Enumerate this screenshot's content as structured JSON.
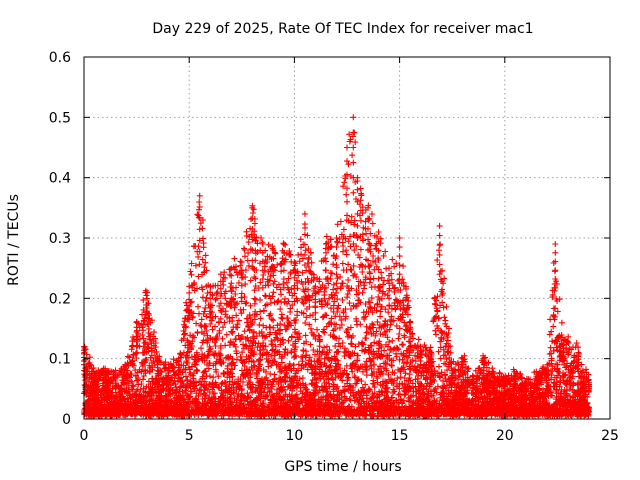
{
  "chart_data": {
    "type": "scatter",
    "title": "Day 229 of 2025, Rate Of TEC Index for receiver mac1",
    "xlabel": "GPS time / hours",
    "ylabel": "ROTI / TECUs",
    "xlim": [
      0,
      25
    ],
    "ylim": [
      0,
      0.6
    ],
    "x_ticks": [
      "0",
      "5",
      "10",
      "15",
      "20",
      "25"
    ],
    "y_ticks": [
      "0",
      "0.1",
      "0.2",
      "0.3",
      "0.4",
      "0.5",
      "0.6"
    ],
    "grid": true,
    "marker": "plus",
    "color": "#ff0000",
    "data_range_hours": [
      0,
      24
    ],
    "envelope": [
      [
        0.0,
        0.12
      ],
      [
        0.5,
        0.07
      ],
      [
        1.0,
        0.08
      ],
      [
        1.5,
        0.07
      ],
      [
        2.0,
        0.08
      ],
      [
        2.5,
        0.16
      ],
      [
        3.0,
        0.21
      ],
      [
        3.5,
        0.1
      ],
      [
        4.0,
        0.08
      ],
      [
        4.5,
        0.1
      ],
      [
        5.0,
        0.22
      ],
      [
        5.5,
        0.37
      ],
      [
        6.0,
        0.21
      ],
      [
        6.5,
        0.24
      ],
      [
        7.0,
        0.25
      ],
      [
        7.5,
        0.26
      ],
      [
        8.0,
        0.35
      ],
      [
        8.5,
        0.29
      ],
      [
        9.0,
        0.28
      ],
      [
        9.5,
        0.29
      ],
      [
        10.0,
        0.26
      ],
      [
        10.5,
        0.34
      ],
      [
        11.0,
        0.22
      ],
      [
        11.5,
        0.29
      ],
      [
        12.0,
        0.3
      ],
      [
        12.5,
        0.45
      ],
      [
        12.8,
        0.5
      ],
      [
        13.0,
        0.4
      ],
      [
        13.5,
        0.35
      ],
      [
        14.0,
        0.31
      ],
      [
        14.5,
        0.25
      ],
      [
        15.0,
        0.3
      ],
      [
        15.5,
        0.16
      ],
      [
        16.0,
        0.12
      ],
      [
        16.5,
        0.11
      ],
      [
        16.9,
        0.32
      ],
      [
        17.5,
        0.08
      ],
      [
        18.0,
        0.1
      ],
      [
        18.5,
        0.07
      ],
      [
        19.0,
        0.1
      ],
      [
        19.5,
        0.07
      ],
      [
        20.0,
        0.06
      ],
      [
        20.5,
        0.07
      ],
      [
        21.0,
        0.06
      ],
      [
        21.5,
        0.07
      ],
      [
        22.0,
        0.08
      ],
      [
        22.4,
        0.29
      ],
      [
        22.8,
        0.13
      ],
      [
        23.5,
        0.11
      ],
      [
        24.0,
        0.06
      ]
    ]
  }
}
